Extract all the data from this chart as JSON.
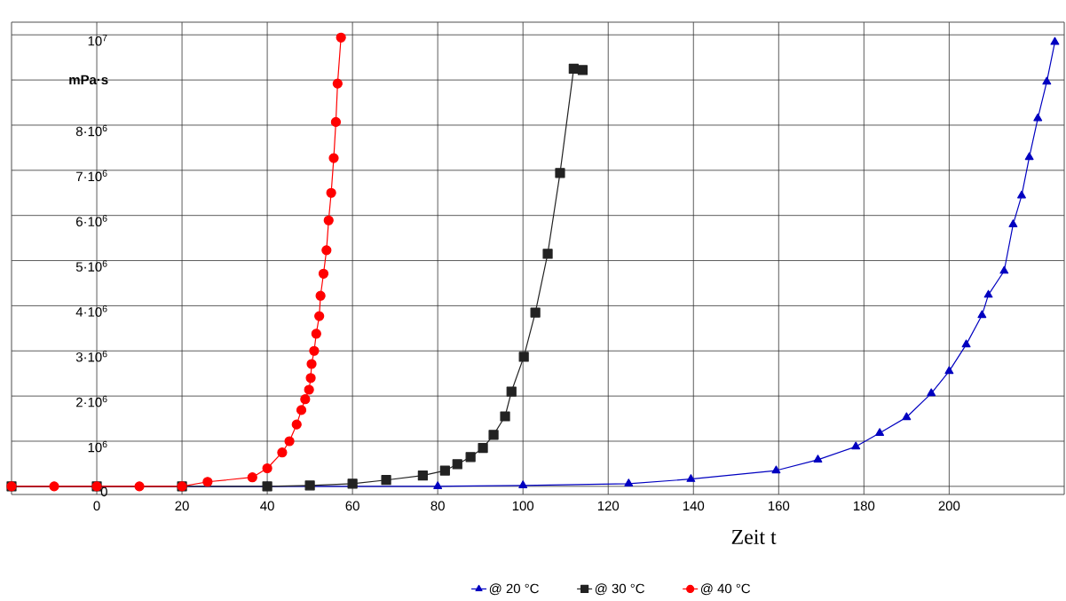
{
  "chart_data": {
    "type": "line",
    "xlabel": "Zeit t",
    "ylabel": "mPa·s",
    "xlim": [
      -20,
      227
    ],
    "ylim": [
      -180000,
      10280000
    ],
    "xticks": [
      0,
      20,
      40,
      60,
      80,
      100,
      120,
      140,
      160,
      180,
      200
    ],
    "yticks": [
      {
        "value": 0,
        "label": "0"
      },
      {
        "value": 1000000,
        "label": "10$^{6}$"
      },
      {
        "value": 2000000,
        "label": "2·10$^{6}$"
      },
      {
        "value": 3000000,
        "label": "3·10$^{6}$"
      },
      {
        "value": 4000000,
        "label": "4·10$^{6}$"
      },
      {
        "value": 5000000,
        "label": "5·10$^{6}$"
      },
      {
        "value": 6000000,
        "label": "6·10$^{6}$"
      },
      {
        "value": 7000000,
        "label": "7·10$^{6}$"
      },
      {
        "value": 8000000,
        "label": "8·10$^{6}$"
      },
      {
        "value": 9000000,
        "label": null
      },
      {
        "value": 10000000,
        "label": "10$^{7}$"
      }
    ],
    "grid": true,
    "legend": "bottom",
    "line_style": "solid",
    "series": [
      {
        "name": "@ 20 °C",
        "color": "#0000c0",
        "marker": "triangle",
        "x": [
          -20,
          0,
          40,
          80,
          100,
          124.8,
          139.4,
          159.4,
          169.2,
          178.1,
          183.7,
          190,
          195.8,
          200,
          204,
          207.7,
          209.2,
          212.9,
          215,
          217,
          218.8,
          220.8,
          222.9,
          224.8
        ],
        "values": [
          0,
          0,
          0,
          0,
          20000,
          60000,
          160000,
          350000,
          590000,
          880000,
          1180000,
          1530000,
          2060000,
          2550000,
          3140000,
          3790000,
          4240000,
          4770000,
          5800000,
          6440000,
          7290000,
          8150000,
          8960000,
          9840000
        ]
      },
      {
        "name": "@ 30 °C",
        "color": "#222222",
        "marker": "square",
        "x": [
          -20,
          0,
          20,
          40,
          50,
          60,
          67.9,
          76.5,
          81.7,
          84.6,
          87.7,
          90.6,
          93.1,
          95.8,
          97.3,
          100.2,
          102.9,
          105.8,
          108.7,
          111.9,
          114
        ],
        "values": [
          0,
          0,
          0,
          0,
          20000,
          60000,
          140000,
          240000,
          350000,
          490000,
          650000,
          850000,
          1140000,
          1550000,
          2100000,
          2870000,
          3850000,
          5150000,
          6940000,
          9250000,
          9220000
        ]
      },
      {
        "name": "@ 40 °C",
        "color": "#ff0000",
        "marker": "circle",
        "x": [
          -20,
          -10,
          0,
          10,
          20,
          26,
          36.5,
          40,
          43.5,
          45.2,
          46.9,
          48,
          48.9,
          49.8,
          50.2,
          50.4,
          51,
          51.5,
          52.2,
          52.5,
          53.2,
          53.9,
          54.4,
          55,
          55.6,
          56.1,
          56.5,
          57.3
        ],
        "values": [
          0,
          0,
          0,
          0,
          0,
          100000,
          200000,
          400000,
          750000,
          1000000,
          1370000,
          1690000,
          1930000,
          2140000,
          2400000,
          2710000,
          3000000,
          3380000,
          3770000,
          4220000,
          4710000,
          5230000,
          5890000,
          6500000,
          7270000,
          8070000,
          8920000,
          9940000
        ]
      }
    ]
  }
}
